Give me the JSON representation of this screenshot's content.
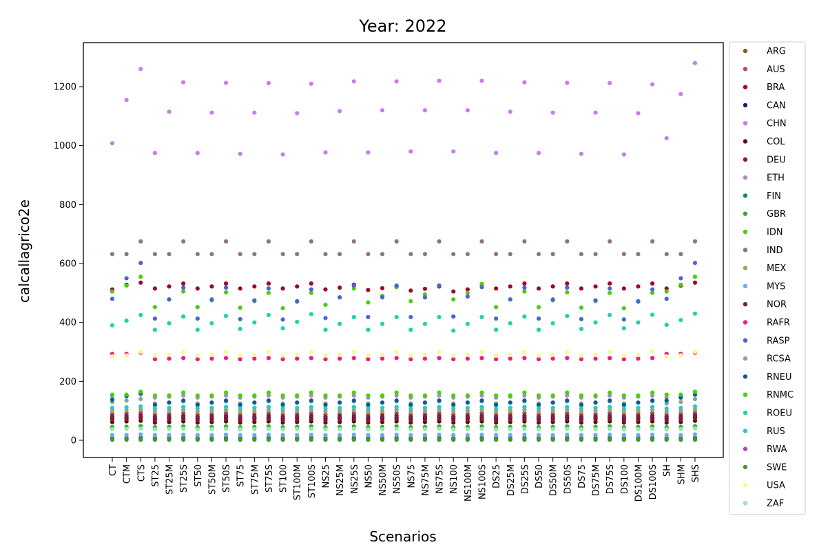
{
  "chart_data": {
    "type": "scatter",
    "title": "Year: 2022",
    "xlabel": "Scenarios",
    "ylabel": "calcallagrico2e",
    "ylim": [
      -60,
      1350
    ],
    "yticks": [
      0,
      200,
      400,
      600,
      800,
      1000,
      1200
    ],
    "grid": false,
    "legend_position": "outside-right",
    "categories": [
      "CT",
      "CTM",
      "CTS",
      "ST25",
      "ST25M",
      "ST25S",
      "ST50",
      "ST50M",
      "ST50S",
      "ST75",
      "ST75M",
      "ST75S",
      "ST100",
      "ST100M",
      "ST100S",
      "NS25",
      "NS25M",
      "NS25S",
      "NS50",
      "NS50M",
      "NS50S",
      "NS75",
      "NS75M",
      "NS75S",
      "NS100",
      "NS100M",
      "NS100S",
      "DS25",
      "DS25M",
      "DS25S",
      "DS50",
      "DS50M",
      "DS50S",
      "DS75",
      "DS75M",
      "DS75S",
      "DS100",
      "DS100M",
      "DS100S",
      "SH",
      "SHM",
      "SHS"
    ],
    "series": [
      {
        "name": "ARG",
        "color": "#8b5a1b",
        "values": [
          5,
          5,
          5,
          5,
          5,
          5,
          5,
          5,
          5,
          5,
          5,
          5,
          5,
          5,
          5,
          5,
          5,
          5,
          5,
          5,
          5,
          5,
          5,
          5,
          5,
          5,
          5,
          5,
          5,
          5,
          5,
          5,
          5,
          5,
          5,
          5,
          5,
          5,
          5,
          5,
          5,
          5
        ]
      },
      {
        "name": "AUS",
        "color": "#c04a6a",
        "values": [
          90,
          92,
          95,
          88,
          90,
          93,
          88,
          90,
          93,
          88,
          90,
          93,
          88,
          90,
          93,
          88,
          90,
          93,
          88,
          90,
          93,
          88,
          90,
          93,
          88,
          90,
          93,
          88,
          90,
          93,
          88,
          90,
          93,
          88,
          90,
          93,
          88,
          90,
          93,
          88,
          90,
          95
        ]
      },
      {
        "name": "BRA",
        "color": "#a1072b",
        "values": [
          512,
          528,
          535,
          515,
          522,
          532,
          515,
          522,
          532,
          515,
          522,
          532,
          515,
          522,
          532,
          512,
          518,
          528,
          510,
          516,
          522,
          508,
          514,
          522,
          505,
          512,
          530,
          515,
          522,
          532,
          515,
          522,
          532,
          515,
          522,
          532,
          515,
          522,
          532,
          515,
          525,
          535
        ]
      },
      {
        "name": "CAN",
        "color": "#3b0a6e",
        "values": [
          75,
          78,
          80,
          74,
          76,
          78,
          74,
          76,
          78,
          74,
          76,
          78,
          74,
          76,
          78,
          74,
          76,
          78,
          74,
          76,
          78,
          74,
          76,
          78,
          74,
          76,
          78,
          74,
          76,
          78,
          74,
          76,
          78,
          74,
          76,
          78,
          74,
          76,
          78,
          74,
          76,
          80
        ]
      },
      {
        "name": "CHN",
        "color": "#c77ded",
        "values": [
          1008,
          1155,
          1260,
          975,
          1115,
          1215,
          975,
          1112,
          1213,
          972,
          1112,
          1212,
          970,
          1110,
          1210,
          977,
          1117,
          1218,
          977,
          1120,
          1218,
          980,
          1120,
          1220,
          980,
          1120,
          1220,
          975,
          1115,
          1215,
          975,
          1112,
          1213,
          972,
          1112,
          1212,
          970,
          1110,
          1208,
          1025,
          1175,
          1280
        ]
      },
      {
        "name": "COL",
        "color": "#5c0e16",
        "values": [
          62,
          64,
          66,
          60,
          62,
          64,
          60,
          62,
          64,
          60,
          62,
          64,
          60,
          62,
          64,
          60,
          62,
          64,
          60,
          62,
          64,
          60,
          62,
          64,
          60,
          62,
          64,
          60,
          62,
          64,
          60,
          62,
          64,
          60,
          62,
          64,
          60,
          62,
          64,
          60,
          62,
          66
        ]
      },
      {
        "name": "DEU",
        "color": "#8b1a1a",
        "values": [
          70,
          72,
          75,
          68,
          70,
          72,
          68,
          70,
          72,
          68,
          70,
          72,
          68,
          70,
          72,
          68,
          70,
          72,
          68,
          70,
          72,
          68,
          70,
          72,
          68,
          70,
          72,
          68,
          70,
          72,
          68,
          70,
          72,
          68,
          70,
          72,
          68,
          70,
          72,
          68,
          70,
          75
        ]
      },
      {
        "name": "ETH",
        "color": "#b08ac0",
        "values": [
          150,
          152,
          155,
          145,
          148,
          152,
          145,
          148,
          152,
          145,
          148,
          152,
          145,
          148,
          152,
          145,
          148,
          152,
          145,
          148,
          152,
          145,
          148,
          152,
          145,
          148,
          152,
          145,
          148,
          152,
          145,
          148,
          152,
          145,
          148,
          152,
          145,
          148,
          152,
          145,
          148,
          155
        ]
      },
      {
        "name": "FIN",
        "color": "#0b8a6e",
        "values": [
          8,
          8,
          9,
          8,
          8,
          9,
          8,
          8,
          9,
          8,
          8,
          9,
          8,
          8,
          9,
          8,
          8,
          9,
          8,
          8,
          9,
          8,
          8,
          9,
          8,
          8,
          9,
          8,
          8,
          9,
          8,
          8,
          9,
          8,
          8,
          9,
          8,
          8,
          9,
          8,
          8,
          9
        ]
      },
      {
        "name": "GBR",
        "color": "#2fae2f",
        "values": [
          45,
          46,
          48,
          44,
          45,
          47,
          44,
          45,
          47,
          44,
          45,
          47,
          44,
          45,
          47,
          44,
          45,
          47,
          44,
          45,
          47,
          44,
          45,
          47,
          44,
          45,
          47,
          44,
          45,
          47,
          44,
          45,
          47,
          44,
          45,
          47,
          44,
          45,
          47,
          44,
          45,
          48
        ]
      },
      {
        "name": "IDN",
        "color": "#4ccc12",
        "values": [
          505,
          525,
          555,
          452,
          478,
          505,
          452,
          475,
          502,
          450,
          472,
          500,
          448,
          470,
          500,
          460,
          485,
          515,
          468,
          490,
          520,
          472,
          495,
          525,
          478,
          500,
          530,
          452,
          478,
          505,
          452,
          475,
          502,
          450,
          472,
          500,
          448,
          470,
          500,
          505,
          528,
          555
        ]
      },
      {
        "name": "IND",
        "color": "#8f7480",
        "values": [
          632,
          632,
          675,
          632,
          632,
          675,
          632,
          632,
          675,
          632,
          632,
          675,
          632,
          632,
          675,
          632,
          632,
          675,
          632,
          632,
          675,
          632,
          632,
          675,
          632,
          632,
          675,
          632,
          632,
          675,
          632,
          632,
          675,
          632,
          632,
          675,
          632,
          632,
          675,
          632,
          632,
          675
        ]
      },
      {
        "name": "MEX",
        "color": "#94ab4e",
        "values": [
          100,
          102,
          105,
          98,
          100,
          103,
          98,
          100,
          103,
          98,
          100,
          103,
          98,
          100,
          103,
          98,
          100,
          103,
          98,
          100,
          103,
          98,
          100,
          103,
          98,
          100,
          103,
          98,
          100,
          103,
          98,
          100,
          103,
          98,
          100,
          103,
          98,
          100,
          103,
          98,
          100,
          105
        ]
      },
      {
        "name": "MYS",
        "color": "#6aaaf0",
        "values": [
          18,
          18,
          20,
          18,
          18,
          19,
          18,
          18,
          19,
          18,
          18,
          19,
          18,
          18,
          19,
          18,
          18,
          19,
          18,
          18,
          19,
          18,
          18,
          19,
          18,
          18,
          19,
          18,
          18,
          19,
          18,
          18,
          19,
          18,
          18,
          19,
          18,
          18,
          19,
          18,
          18,
          20
        ]
      },
      {
        "name": "NOR",
        "color": "#7a1f52",
        "values": [
          82,
          84,
          86,
          80,
          82,
          84,
          80,
          82,
          84,
          80,
          82,
          84,
          80,
          82,
          84,
          80,
          82,
          84,
          80,
          82,
          84,
          80,
          82,
          84,
          80,
          82,
          84,
          80,
          82,
          84,
          80,
          82,
          84,
          80,
          82,
          84,
          80,
          82,
          84,
          80,
          82,
          86
        ]
      },
      {
        "name": "RAFR",
        "color": "#ee1a8c",
        "values": [
          293,
          293,
          297,
          275,
          277,
          279,
          275,
          277,
          279,
          275,
          277,
          279,
          275,
          277,
          279,
          275,
          277,
          279,
          275,
          277,
          279,
          275,
          277,
          279,
          275,
          277,
          279,
          275,
          277,
          279,
          275,
          277,
          279,
          275,
          277,
          279,
          275,
          277,
          279,
          293,
          293,
          297
        ]
      },
      {
        "name": "RASP",
        "color": "#4a63d6",
        "values": [
          480,
          550,
          602,
          413,
          478,
          518,
          413,
          478,
          518,
          411,
          475,
          515,
          410,
          472,
          512,
          415,
          485,
          525,
          418,
          485,
          525,
          418,
          485,
          525,
          420,
          488,
          520,
          413,
          478,
          518,
          413,
          478,
          518,
          411,
          475,
          515,
          410,
          472,
          512,
          480,
          550,
          602
        ]
      },
      {
        "name": "RCSA",
        "color": "#80aa95",
        "values": [
          130,
          135,
          140,
          125,
          128,
          132,
          125,
          128,
          132,
          125,
          128,
          132,
          125,
          128,
          132,
          125,
          128,
          132,
          125,
          128,
          132,
          125,
          128,
          132,
          125,
          128,
          132,
          125,
          128,
          132,
          125,
          128,
          132,
          125,
          128,
          132,
          125,
          128,
          132,
          125,
          130,
          140
        ]
      },
      {
        "name": "RNEU",
        "color": "#07608a",
        "values": [
          138,
          150,
          160,
          120,
          128,
          135,
          120,
          128,
          135,
          120,
          128,
          135,
          120,
          128,
          135,
          120,
          128,
          135,
          120,
          128,
          135,
          120,
          128,
          135,
          120,
          128,
          135,
          120,
          128,
          135,
          120,
          128,
          135,
          120,
          128,
          135,
          120,
          128,
          135,
          135,
          145,
          155
        ]
      },
      {
        "name": "RNMC",
        "color": "#3fd60a",
        "values": [
          155,
          155,
          165,
          152,
          152,
          162,
          152,
          152,
          162,
          152,
          152,
          162,
          152,
          152,
          162,
          152,
          152,
          162,
          152,
          152,
          162,
          152,
          152,
          162,
          152,
          152,
          162,
          152,
          152,
          162,
          152,
          152,
          162,
          152,
          152,
          162,
          152,
          152,
          162,
          155,
          155,
          165
        ]
      },
      {
        "name": "ROEU",
        "color": "#1ed4a4",
        "values": [
          390,
          406,
          425,
          375,
          397,
          420,
          375,
          397,
          422,
          378,
          400,
          425,
          380,
          402,
          428,
          375,
          395,
          418,
          375,
          395,
          418,
          375,
          395,
          418,
          372,
          395,
          418,
          375,
          397,
          420,
          375,
          397,
          422,
          378,
          400,
          425,
          380,
          400,
          426,
          392,
          408,
          430
        ]
      },
      {
        "name": "RUS",
        "color": "#2ec3db",
        "values": [
          110,
          112,
          115,
          108,
          110,
          113,
          108,
          110,
          113,
          108,
          110,
          113,
          108,
          110,
          113,
          108,
          110,
          113,
          108,
          110,
          113,
          108,
          110,
          113,
          108,
          110,
          113,
          108,
          110,
          113,
          108,
          110,
          113,
          108,
          110,
          113,
          108,
          110,
          113,
          108,
          110,
          115
        ]
      },
      {
        "name": "RWA",
        "color": "#b048b8",
        "values": [
          3,
          3,
          3,
          3,
          3,
          3,
          3,
          3,
          3,
          3,
          3,
          3,
          3,
          3,
          3,
          3,
          3,
          3,
          3,
          3,
          3,
          3,
          3,
          3,
          3,
          3,
          3,
          3,
          3,
          3,
          3,
          3,
          3,
          3,
          3,
          3,
          3,
          3,
          3,
          3,
          3,
          3
        ]
      },
      {
        "name": "SWE",
        "color": "#4a9430",
        "values": [
          2,
          2,
          2,
          2,
          2,
          2,
          2,
          2,
          2,
          2,
          2,
          2,
          2,
          2,
          2,
          2,
          2,
          2,
          2,
          2,
          2,
          2,
          2,
          2,
          2,
          2,
          2,
          2,
          2,
          2,
          2,
          2,
          2,
          2,
          2,
          2,
          2,
          2,
          2,
          2,
          2,
          2
        ]
      },
      {
        "name": "USA",
        "color": "#fdf888",
        "values": [
          285,
          288,
          300,
          288,
          290,
          300,
          288,
          290,
          300,
          288,
          290,
          300,
          288,
          290,
          300,
          288,
          290,
          300,
          288,
          290,
          300,
          288,
          290,
          300,
          288,
          290,
          300,
          288,
          290,
          300,
          288,
          290,
          300,
          288,
          290,
          300,
          288,
          290,
          303,
          285,
          288,
          300
        ]
      },
      {
        "name": "ZAF",
        "color": "#98e8a4",
        "values": [
          38,
          39,
          40,
          37,
          38,
          39,
          37,
          38,
          39,
          37,
          38,
          39,
          37,
          38,
          39,
          37,
          38,
          39,
          37,
          38,
          39,
          37,
          38,
          39,
          37,
          38,
          39,
          37,
          38,
          39,
          37,
          38,
          39,
          37,
          38,
          39,
          37,
          38,
          39,
          37,
          38,
          40
        ]
      }
    ]
  }
}
